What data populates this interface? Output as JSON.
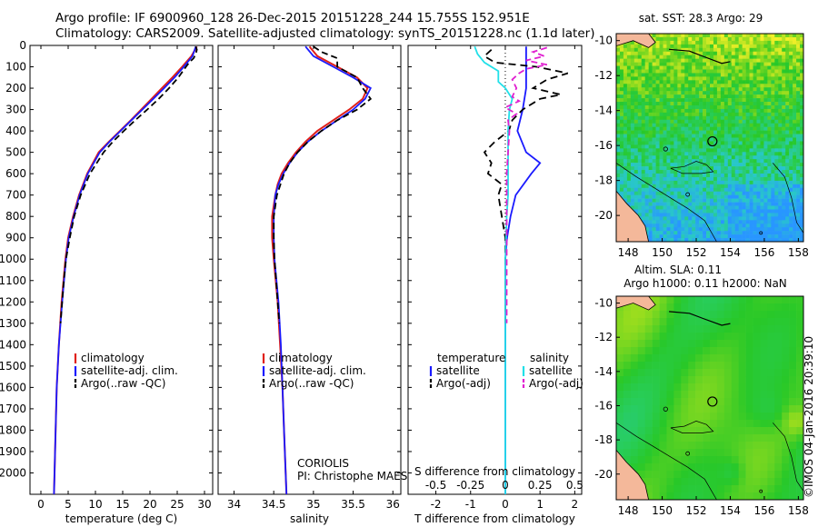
{
  "header": {
    "line1": "Argo profile: IF 6900960_128 26-Dec-2015 20151228_244 15.755S 152.951E",
    "line2": "Climatology: CARS2009. Satellite-adjusted climatology: synTS_20151228.nc (1.1d later)"
  },
  "credit": "©IMOS 04-Jan-2016 20:39:10",
  "colors": {
    "climatology": "#e0201a",
    "satellite": "#1a1aff",
    "argo": "#000000",
    "sal_satellite": "#22e0e8",
    "sal_argo": "#e020d0",
    "land": "#f4b89a"
  },
  "chart_data": [
    {
      "type": "line",
      "title": "",
      "xlabel": "temperature (deg C)",
      "ylabel": "",
      "xlim": [
        -2,
        31.5
      ],
      "ylim": [
        2100,
        0
      ],
      "xticks": [
        "0",
        "5",
        "10",
        "15",
        "20",
        "25",
        "30"
      ],
      "yticks": [
        "0",
        "100",
        "200",
        "300",
        "400",
        "500",
        "600",
        "700",
        "800",
        "900",
        "1000",
        "1100",
        "1200",
        "1300",
        "1400",
        "1500",
        "1600",
        "1700",
        "1800",
        "1900",
        "2000"
      ],
      "legend": [
        "climatology",
        "satellite-adj. clim.",
        "Argo(..raw -QC)"
      ],
      "legend_position": "lower-center",
      "series": [
        {
          "name": "climatology",
          "depth": [
            5,
            50,
            100,
            150,
            200,
            250,
            300,
            350,
            400,
            450,
            500,
            600,
            700,
            800,
            900,
            1000,
            1200,
            1400,
            1600,
            1800,
            2000,
            2100
          ],
          "values": [
            28.6,
            27.6,
            25.9,
            24.1,
            22.2,
            20.3,
            18.4,
            16.5,
            14.5,
            12.5,
            10.6,
            8.5,
            7.0,
            5.9,
            5.0,
            4.5,
            3.8,
            3.3,
            2.9,
            2.7,
            2.5,
            2.4
          ]
        },
        {
          "name": "satellite-adj. clim.",
          "depth": [
            5,
            50,
            100,
            150,
            200,
            250,
            300,
            350,
            400,
            450,
            500,
            600,
            700,
            800,
            900,
            1000,
            1200,
            1400,
            1600,
            1800,
            2000,
            2100
          ],
          "values": [
            28.4,
            27.8,
            26.2,
            24.5,
            22.6,
            20.6,
            18.6,
            16.6,
            14.6,
            12.6,
            10.8,
            8.6,
            7.1,
            6.0,
            5.1,
            4.6,
            3.9,
            3.3,
            2.9,
            2.7,
            2.5,
            2.4
          ]
        },
        {
          "name": "Argo(..raw -QC)",
          "depth": [
            5,
            20,
            40,
            60,
            80,
            100,
            150,
            200,
            250,
            300,
            350,
            400,
            450,
            500,
            600,
            700,
            800,
            900,
            1000,
            1100,
            1200,
            1300
          ],
          "values": [
            28.4,
            28.6,
            28.4,
            28.0,
            27.2,
            26.6,
            25.2,
            23.5,
            21.6,
            19.5,
            17.3,
            15.2,
            13.2,
            11.5,
            9.0,
            7.3,
            6.1,
            5.3,
            4.6,
            4.2,
            3.9,
            3.6
          ]
        }
      ]
    },
    {
      "type": "line",
      "xlabel": "salinity",
      "ylabel": "",
      "xlim": [
        33.8,
        36.1
      ],
      "ylim": [
        2100,
        0
      ],
      "xticks": [
        "34",
        "34.5",
        "35",
        "35.5",
        "36"
      ],
      "legend": [
        "climatology",
        "satellite-adj. clim.",
        "Argo(..raw -QC)"
      ],
      "legend_position": "lower-center",
      "annotation": [
        "CORIOLIS",
        "PI: Christophe MAES"
      ],
      "series": [
        {
          "name": "climatology",
          "depth": [
            5,
            50,
            100,
            150,
            200,
            250,
            300,
            350,
            400,
            450,
            500,
            550,
            600,
            650,
            700,
            800,
            900,
            1000,
            1200,
            1400,
            1600,
            1800,
            2000,
            2100
          ],
          "values": [
            34.95,
            35.05,
            35.3,
            35.55,
            35.68,
            35.62,
            35.45,
            35.25,
            35.05,
            34.9,
            34.78,
            34.68,
            34.6,
            34.55,
            34.52,
            34.48,
            34.48,
            34.5,
            34.55,
            34.58,
            34.61,
            34.63,
            34.65,
            34.66
          ]
        },
        {
          "name": "satellite-adj. clim.",
          "depth": [
            5,
            50,
            100,
            150,
            200,
            250,
            300,
            350,
            400,
            450,
            500,
            550,
            600,
            650,
            700,
            800,
            900,
            1000,
            1200,
            1400,
            1600,
            1800,
            2000,
            2100
          ],
          "values": [
            34.9,
            35.0,
            35.25,
            35.5,
            35.72,
            35.65,
            35.5,
            35.3,
            35.1,
            34.93,
            34.8,
            34.7,
            34.62,
            34.56,
            34.52,
            34.5,
            34.5,
            34.51,
            34.56,
            34.59,
            34.61,
            34.63,
            34.65,
            34.66
          ]
        },
        {
          "name": "Argo(..raw -QC)",
          "depth": [
            5,
            30,
            60,
            100,
            150,
            200,
            250,
            300,
            350,
            400,
            450,
            500,
            550,
            600,
            700,
            800,
            900,
            1000,
            1100,
            1200,
            1300
          ],
          "values": [
            35.0,
            35.1,
            35.3,
            35.3,
            35.55,
            35.62,
            35.72,
            35.55,
            35.3,
            35.1,
            34.93,
            34.8,
            34.7,
            34.63,
            34.54,
            34.5,
            34.5,
            34.51,
            34.53,
            34.55,
            34.57
          ]
        }
      ]
    },
    {
      "type": "line",
      "xlabel": "T difference from climatology",
      "xlabel_top": "S difference from climatology",
      "xlim": [
        -2.8,
        2.2
      ],
      "ylim": [
        2100,
        0
      ],
      "xticks": [
        "-2",
        "-1",
        "0",
        "1",
        "2"
      ],
      "xticks_salinity": [
        "-0.5",
        "-0.25",
        "0",
        "0.25",
        "0.5"
      ],
      "legend_groups": [
        "temperature",
        "salinity"
      ],
      "legend": [
        "satellite",
        "Argo(-adj)",
        "satellite",
        "Argo(-adj)"
      ],
      "legend_position": "lower-center",
      "series": [
        {
          "name": "temperature satellite",
          "depth": [
            5,
            50,
            100,
            150,
            200,
            300,
            400,
            500,
            550,
            600,
            700,
            800,
            900,
            1000,
            1200,
            1500,
            1800,
            2100
          ],
          "values": [
            0.6,
            0.6,
            0.6,
            0.6,
            0.6,
            0.5,
            0.35,
            0.6,
            1.0,
            0.75,
            0.3,
            0.15,
            0.05,
            0.0,
            0.0,
            0.0,
            0.0,
            0.0
          ]
        },
        {
          "name": "temperature Argo(-adj)",
          "depth": [
            20,
            50,
            80,
            100,
            130,
            160,
            200,
            230,
            250,
            280,
            300,
            350,
            400,
            450,
            500,
            550,
            600,
            650,
            700,
            800,
            900,
            1000,
            1100,
            1200,
            1300
          ],
          "values": [
            -0.4,
            -0.6,
            -0.3,
            0.9,
            1.8,
            1.2,
            0.8,
            1.6,
            1.0,
            0.7,
            0.5,
            0.2,
            0.1,
            -0.3,
            -0.6,
            -0.4,
            -0.5,
            -0.1,
            -0.2,
            -0.1,
            0.0,
            0.0,
            0.0,
            0.0,
            0.0
          ]
        },
        {
          "name": "salinity satellite",
          "depth": [
            5,
            40,
            80,
            120,
            170,
            200,
            250,
            300,
            400,
            500,
            600,
            700,
            800,
            1000,
            1500,
            2100
          ],
          "values": [
            -0.22,
            -0.2,
            -0.15,
            -0.05,
            -0.05,
            0.0,
            0.05,
            0.03,
            0.02,
            0.02,
            0.02,
            0.02,
            0.01,
            0.0,
            0.0,
            0.0
          ]
        },
        {
          "name": "salinity Argo(-adj)",
          "depth": [
            10,
            30,
            50,
            70,
            90,
            110,
            130,
            160,
            200,
            240,
            260,
            290,
            320,
            350,
            400,
            500,
            600,
            800,
            1000,
            1200,
            1300
          ],
          "values": [
            0.3,
            0.2,
            0.28,
            0.15,
            0.3,
            0.15,
            0.1,
            0.05,
            0.08,
            0.05,
            0.1,
            0.0,
            0.08,
            0.02,
            0.03,
            0.02,
            0.01,
            0.01,
            0.01,
            0.01,
            0.01
          ]
        }
      ]
    },
    {
      "type": "heatmap",
      "title": "sat. SST: 28.3 Argo: 29",
      "xticks": [
        "148",
        "150",
        "152",
        "154",
        "156",
        "158"
      ],
      "yticks": [
        "-10",
        "-12",
        "-14",
        "-16",
        "-18",
        "-20"
      ],
      "marker": {
        "lon": 152.95,
        "lat": -15.76
      }
    },
    {
      "type": "heatmap",
      "title": "Altim. SLA: 0.11",
      "subtitle": "Argo h1000: 0.11 h2000: NaN",
      "xticks": [
        "148",
        "150",
        "152",
        "154",
        "156",
        "158"
      ],
      "yticks": [
        "-10",
        "-12",
        "-14",
        "-16",
        "-18",
        "-20"
      ],
      "marker": {
        "lon": 152.95,
        "lat": -15.76
      }
    }
  ]
}
